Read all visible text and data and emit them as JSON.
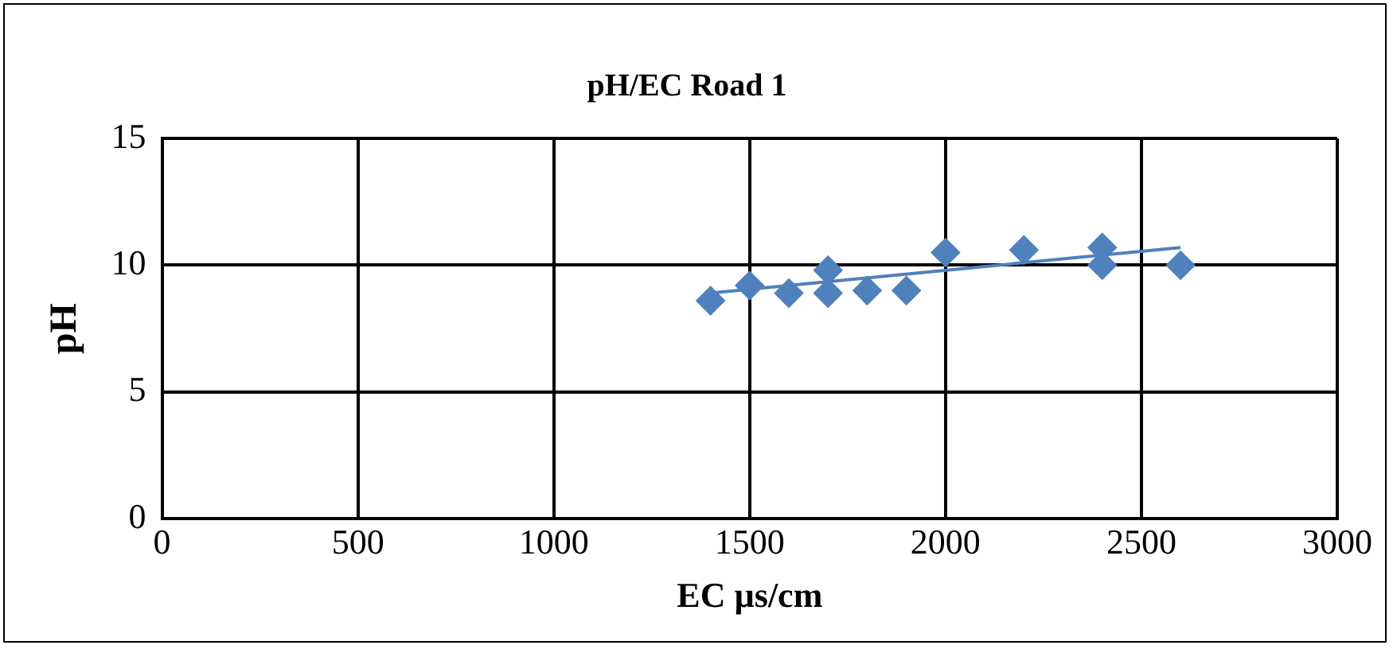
{
  "chart_data": {
    "type": "scatter",
    "title": "pH/EC Road 1",
    "xlabel": "EC µs/cm",
    "ylabel": "pH",
    "x": [
      1400,
      1500,
      1600,
      1700,
      1700,
      1800,
      1900,
      2000,
      2200,
      2400,
      2400,
      2600
    ],
    "series": [
      {
        "color": "#4f81bd",
        "values": [
          8.6,
          9.2,
          8.9,
          9.8,
          8.9,
          9.0,
          9.0,
          10.5,
          10.6,
          10.7,
          10.0,
          10.0
        ],
        "marker": "diamond"
      },
      {
        "type": "line",
        "color": "#4f81bd",
        "x": [
          1400,
          2600
        ],
        "values": [
          8.9,
          10.7
        ],
        "marker": "none"
      }
    ],
    "xlim": [
      0,
      3000
    ],
    "xticks": [
      0,
      500,
      1000,
      1500,
      2000,
      2500,
      3000
    ],
    "ylim": [
      0,
      15
    ],
    "yticks": [
      0,
      5,
      10,
      15
    ],
    "grid": true,
    "legend": false
  }
}
